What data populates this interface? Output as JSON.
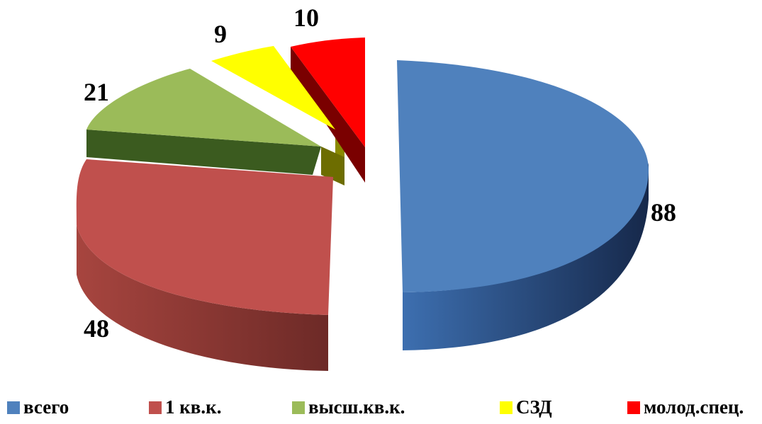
{
  "chart_data": {
    "type": "pie",
    "title": "",
    "categories": [
      "всего",
      "1 кв.к.",
      "высш.кв.к.",
      "СЗД",
      "молод.спец."
    ],
    "values": [
      88,
      48,
      21,
      9,
      10
    ],
    "colors": [
      "#4F81BD",
      "#C0504D",
      "#9BBB59",
      "#FFFF00",
      "#FF0000"
    ],
    "style": "3d-exploded",
    "legend": "bottom",
    "data_labels": true
  }
}
